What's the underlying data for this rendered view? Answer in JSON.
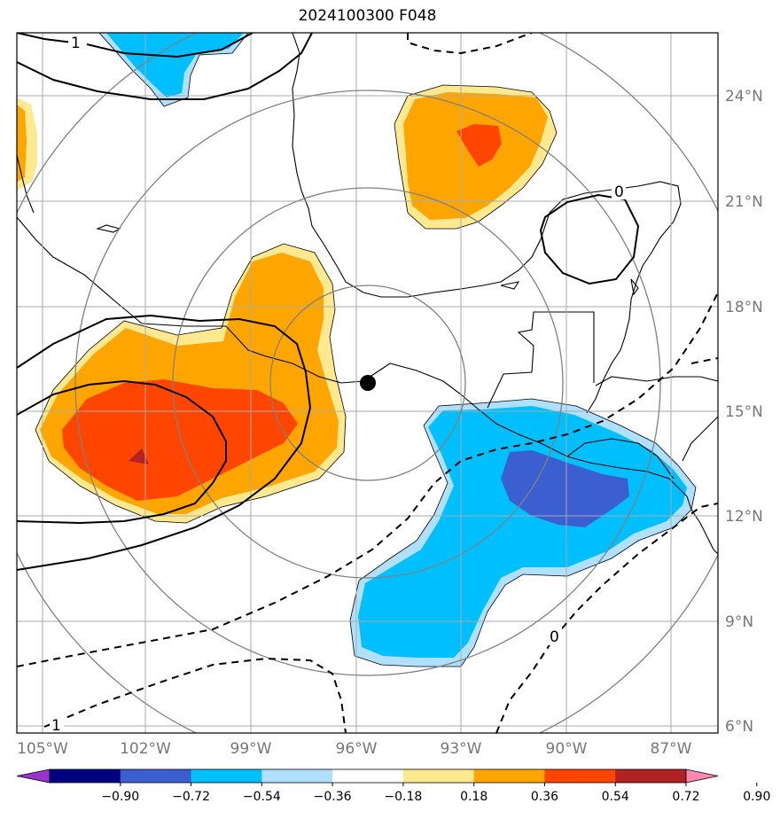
{
  "title": "2024100300 F048",
  "map": {
    "lon_range": [
      -105.5,
      -86.0
    ],
    "lat_range": [
      5.9,
      25.8
    ],
    "lon_ticks": [
      {
        "value": -105,
        "label": "105°W"
      },
      {
        "value": -102,
        "label": "102°W"
      },
      {
        "value": -99,
        "label": "99°W"
      },
      {
        "value": -96,
        "label": "96°W"
      },
      {
        "value": -93,
        "label": "93°W"
      },
      {
        "value": -90,
        "label": "90°W"
      },
      {
        "value": -87,
        "label": "87°W"
      }
    ],
    "lat_ticks": [
      {
        "value": 24,
        "label": "24°N"
      },
      {
        "value": 21,
        "label": "21°N"
      },
      {
        "value": 18,
        "label": "18°N"
      },
      {
        "value": 15,
        "label": "15°N"
      },
      {
        "value": 12,
        "label": "12°N"
      },
      {
        "value": 9,
        "label": "9°N"
      },
      {
        "value": 6,
        "label": "6°N"
      }
    ],
    "center_marker": {
      "lon": -95.9,
      "lat": 15.8
    },
    "range_rings": 4,
    "contour_labels": [
      "1",
      "0",
      "0",
      "1"
    ]
  },
  "colorbar": {
    "ticks": [
      "−0.90",
      "−0.72",
      "−0.54",
      "−0.36",
      "−0.18",
      "0.18",
      "0.36",
      "0.54",
      "0.72",
      "0.90"
    ],
    "colors": [
      "#9933cc",
      "#000080",
      "#3b5fd0",
      "#00bfff",
      "#b0e0ff",
      "#ffffff",
      "#ffe990",
      "#ffa500",
      "#ff4500",
      "#b22222",
      "#ff88b0"
    ],
    "extend": "both"
  }
}
